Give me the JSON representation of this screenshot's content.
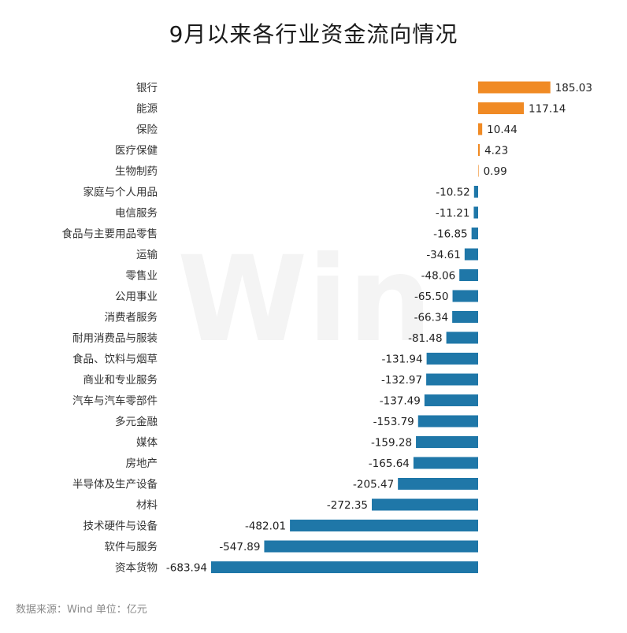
{
  "chart_data": {
    "type": "bar",
    "orientation": "horizontal",
    "title": "9月以来各行业资金流向情况",
    "source_note": "数据来源：Wind  单位：亿元",
    "watermark": "Win",
    "colors": {
      "positive": "#f08a24",
      "negative": "#1f77a8"
    },
    "categories": [
      "银行",
      "能源",
      "保险",
      "医疗保健",
      "生物制药",
      "家庭与个人用品",
      "电信服务",
      "食品与主要用品零售",
      "运输",
      "零售业",
      "公用事业",
      "消费者服务",
      "耐用消费品与服装",
      "食品、饮料与烟草",
      "商业和专业服务",
      "汽车与汽车零部件",
      "多元金融",
      "媒体",
      "房地产",
      "半导体及生产设备",
      "材料",
      "技术硬件与设备",
      "软件与服务",
      "资本货物"
    ],
    "values": [
      185.03,
      117.14,
      10.44,
      4.23,
      0.99,
      -10.52,
      -11.21,
      -16.85,
      -34.61,
      -48.06,
      -65.5,
      -66.34,
      -81.48,
      -131.94,
      -132.97,
      -137.49,
      -153.79,
      -159.28,
      -165.64,
      -205.47,
      -272.35,
      -482.01,
      -547.89,
      -683.94
    ],
    "value_labels": [
      "185.03",
      "117.14",
      "10.44",
      "4.23",
      "0.99",
      "-10.52",
      "-11.21",
      "-16.85",
      "-34.61",
      "-48.06",
      "-65.50",
      "-66.34",
      "-81.48",
      "-131.94",
      "-132.97",
      "-137.49",
      "-153.79",
      "-159.28",
      "-165.64",
      "-205.47",
      "-272.35",
      "-482.01",
      "-547.89",
      "-683.94"
    ]
  }
}
